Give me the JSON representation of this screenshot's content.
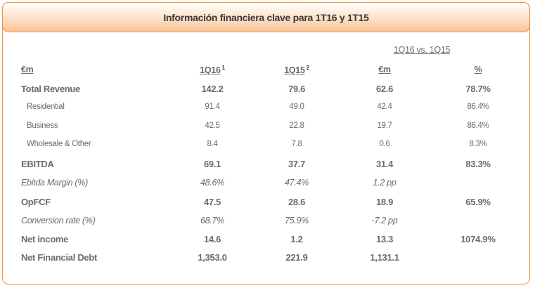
{
  "title": "Información financiera clave para 1T16 y 1T15",
  "group_header": "1Q16 vs. 1Q15",
  "columns": [
    {
      "label": "€m",
      "sup": ""
    },
    {
      "label": "1Q16",
      "sup": "1"
    },
    {
      "label": "1Q15",
      "sup": "2"
    },
    {
      "label": "€m",
      "sup": ""
    },
    {
      "label": "%",
      "sup": ""
    }
  ],
  "rows": [
    {
      "style": "bold",
      "cells": [
        "Total Revenue",
        "142.2",
        "79.6",
        "62.6",
        "78.7%"
      ]
    },
    {
      "style": "sub",
      "cells": [
        "Residential",
        "91.4",
        "49.0",
        "42.4",
        "86.4%"
      ]
    },
    {
      "style": "sub",
      "cells": [
        "Business",
        "42.5",
        "22.8",
        "19.7",
        "86.4%"
      ]
    },
    {
      "style": "sub",
      "cells": [
        "Wholesale & Other",
        "8.4",
        "7.8",
        "0.6",
        "8.3%"
      ]
    },
    {
      "style": "bold",
      "cells": [
        "EBITDA",
        "69.1",
        "37.7",
        "31.4",
        "83.3%"
      ]
    },
    {
      "style": "ital",
      "cells": [
        "Ebitda Margin (%)",
        "48.6%",
        "47.4%",
        "1.2 pp",
        ""
      ]
    },
    {
      "style": "bold",
      "cells": [
        "OpFCF",
        "47.5",
        "28.6",
        "18.9",
        "65.9%"
      ]
    },
    {
      "style": "ital",
      "cells": [
        "Conversion rate (%)",
        "68.7%",
        "75.9%",
        "-7.2 pp",
        ""
      ]
    },
    {
      "style": "bold",
      "cells": [
        "Net income",
        "14.6",
        "1.2",
        "13.3",
        "1074.9%"
      ]
    },
    {
      "style": "bold",
      "cells": [
        "Net Financial Debt",
        "1,353.0",
        "221.9",
        "1,131.1",
        ""
      ]
    }
  ]
}
